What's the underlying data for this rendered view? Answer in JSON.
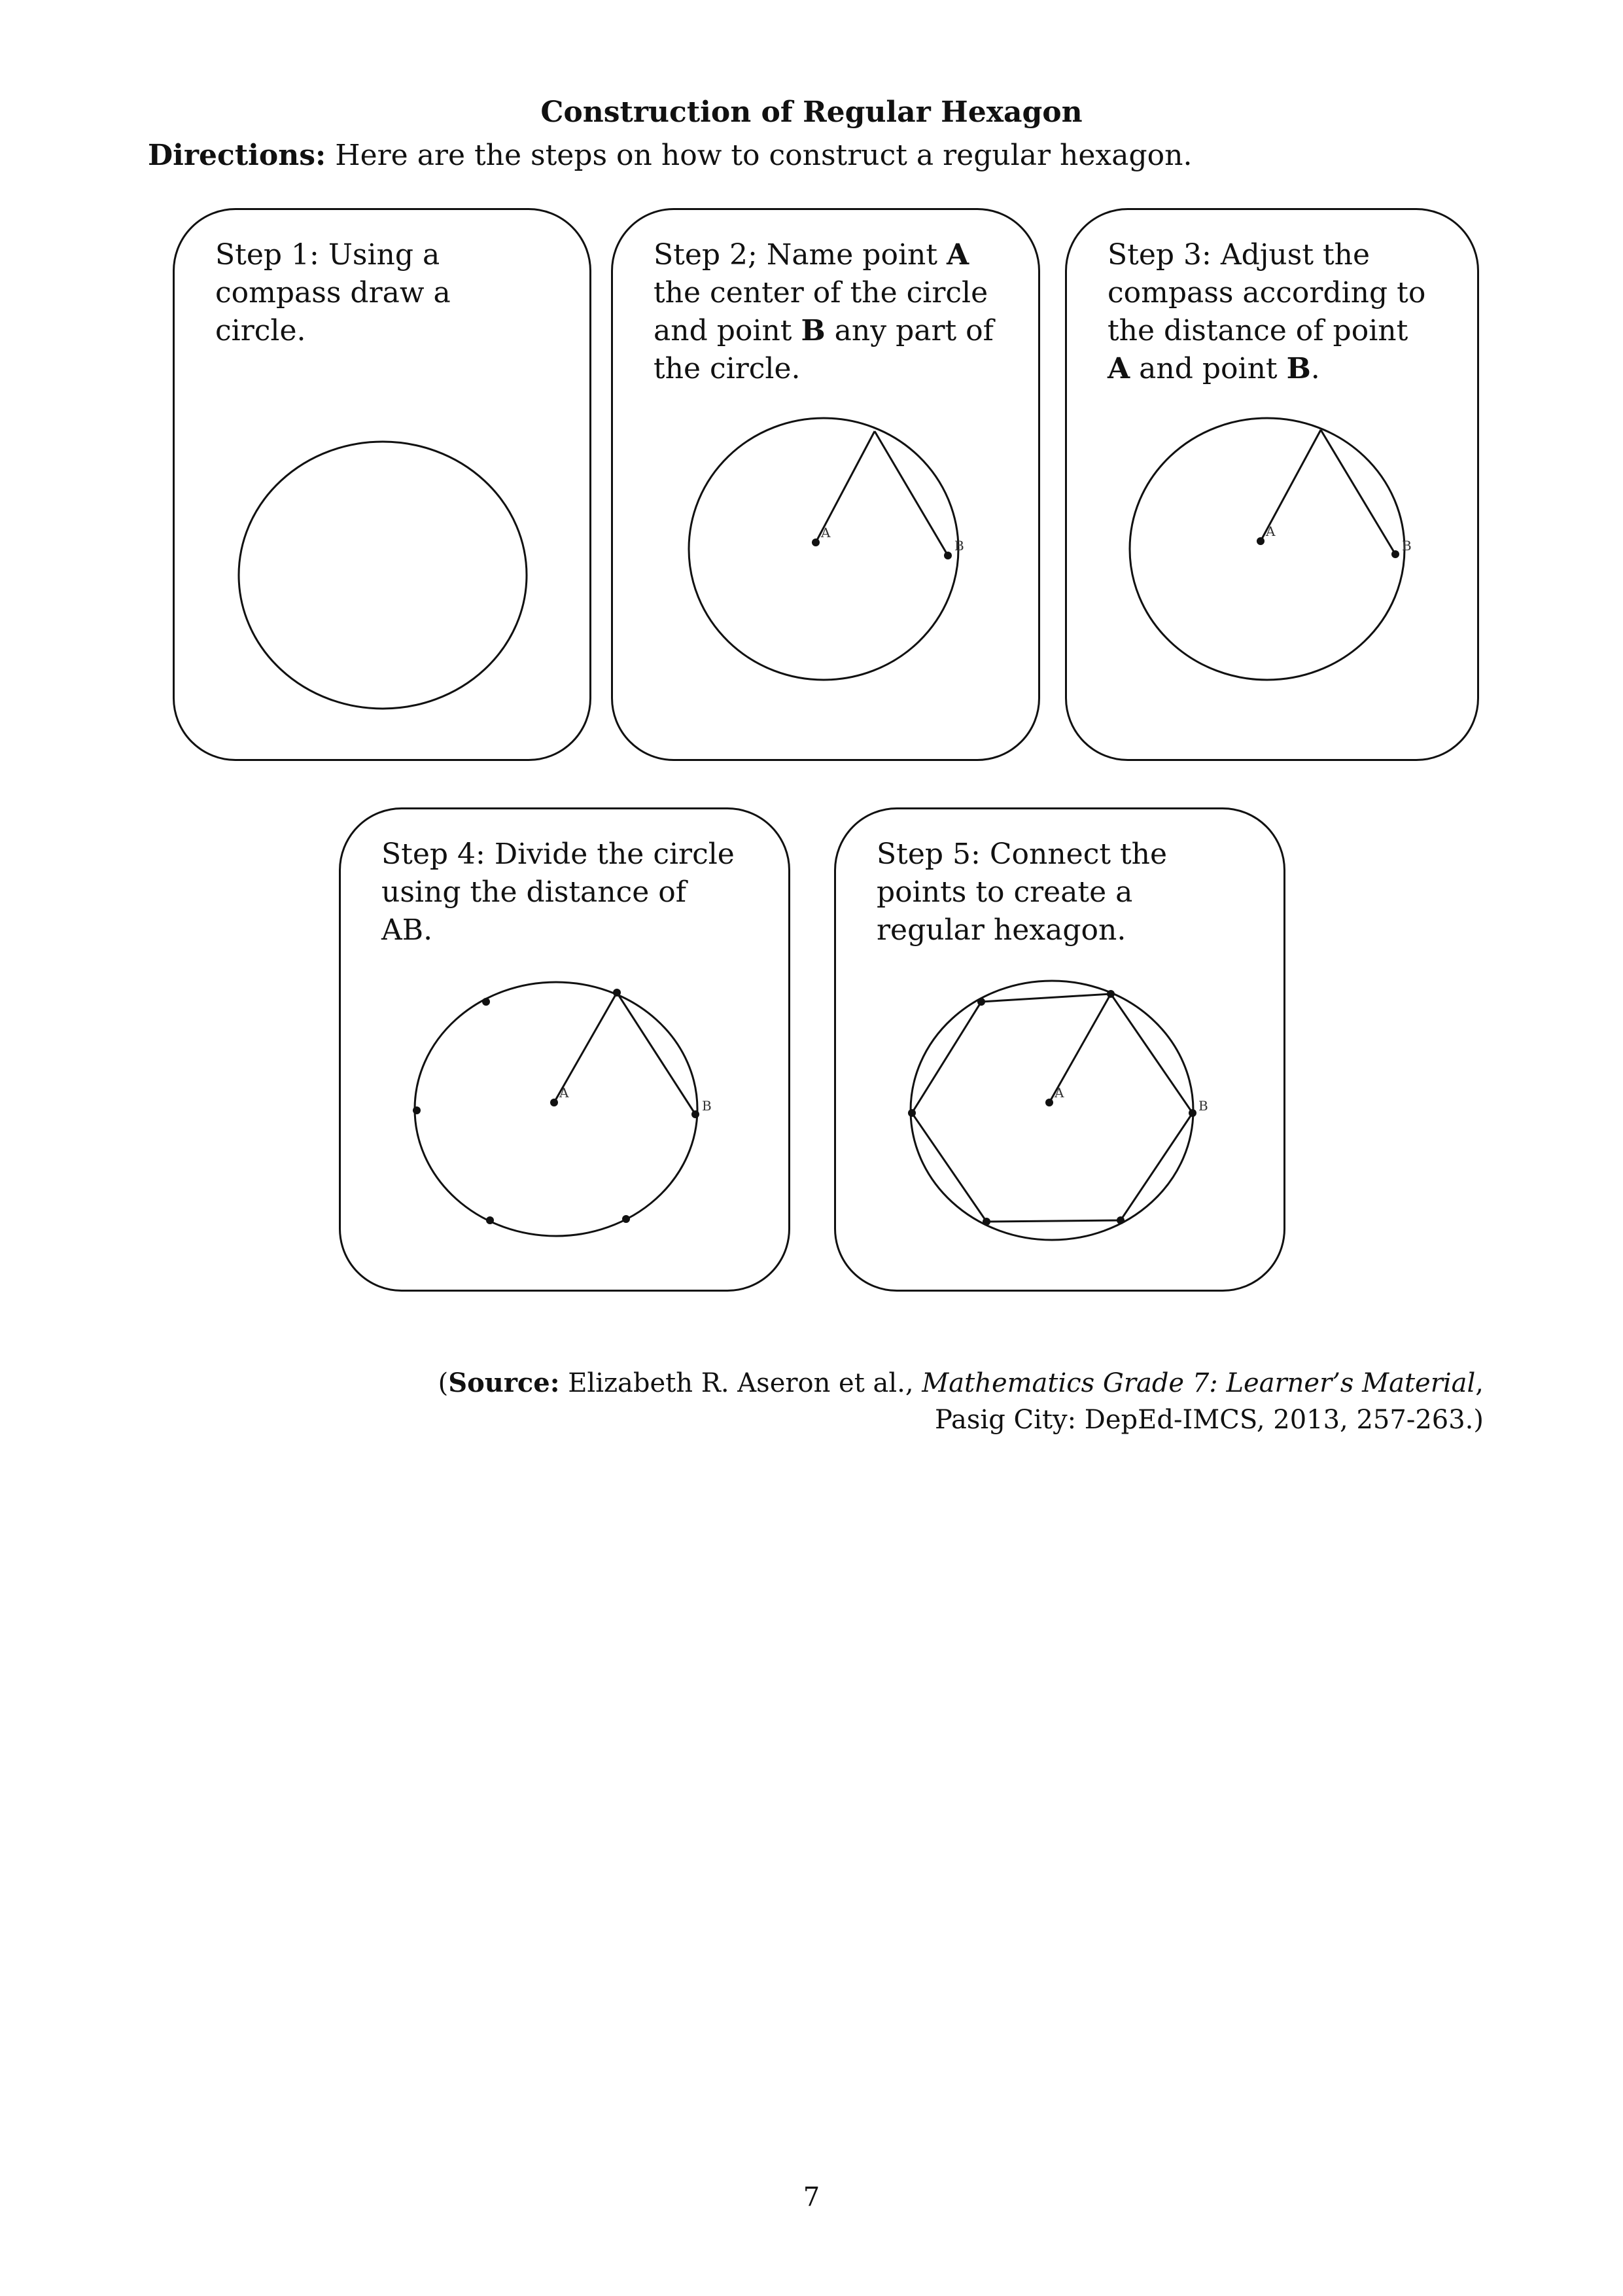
{
  "title": "Construction of Regular Hexagon",
  "directions": {
    "label": "Directions:",
    "text": " Here are the steps on how to construct a regular hexagon."
  },
  "steps": [
    {
      "lines": [
        [
          "Step 1: Using a"
        ],
        [
          "compass draw a"
        ],
        [
          "circle."
        ]
      ]
    },
    {
      "lines": [
        [
          "Step 2; Name point ",
          "A"
        ],
        [
          "the center of the circle"
        ],
        [
          "and point ",
          "B",
          " any part of"
        ],
        [
          "the circle."
        ]
      ]
    },
    {
      "lines": [
        [
          "Step 3: Adjust the"
        ],
        [
          "compass according to"
        ],
        [
          "the distance of point"
        ],
        [
          "",
          "A",
          " and point ",
          "B",
          "."
        ]
      ]
    },
    {
      "lines": [
        [
          "Step 4: Divide the circle"
        ],
        [
          "using the distance of"
        ],
        [
          "AB."
        ]
      ]
    },
    {
      "lines": [
        [
          "Step 5: Connect the"
        ],
        [
          "points to create a"
        ],
        [
          "regular hexagon."
        ]
      ]
    }
  ],
  "point_labels": {
    "a": "A",
    "b": "B"
  },
  "source": {
    "open_paren": "(",
    "label": "Source:",
    "authors": " Elizabeth R. Aseron et al., ",
    "book": "Mathematics Grade 7: Learner’s Material",
    "comma": ",",
    "line2": "Pasig City: DepEd-IMCS, 2013, 257-263.)"
  },
  "page_number": "7"
}
